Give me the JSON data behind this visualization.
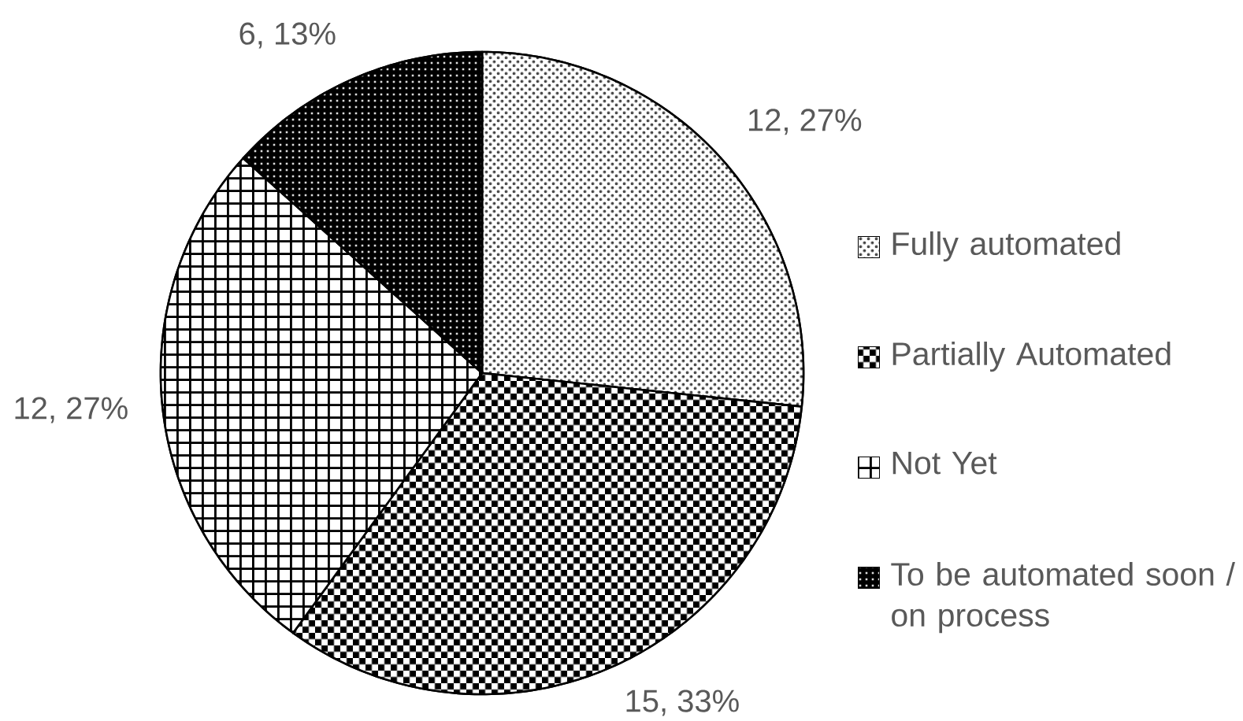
{
  "chart_data": {
    "type": "pie",
    "categories": [
      "Fully automated",
      "Partially Automated",
      "Not Yet",
      "To be automated soon / on process"
    ],
    "values": [
      12,
      15,
      12,
      6
    ],
    "value_labels": [
      "12, 27%",
      "15, 33%",
      "12, 27%",
      "6, 13%"
    ],
    "colors": [
      "#404040",
      "#000000",
      "#000000",
      "#000000"
    ],
    "legend": "right"
  }
}
